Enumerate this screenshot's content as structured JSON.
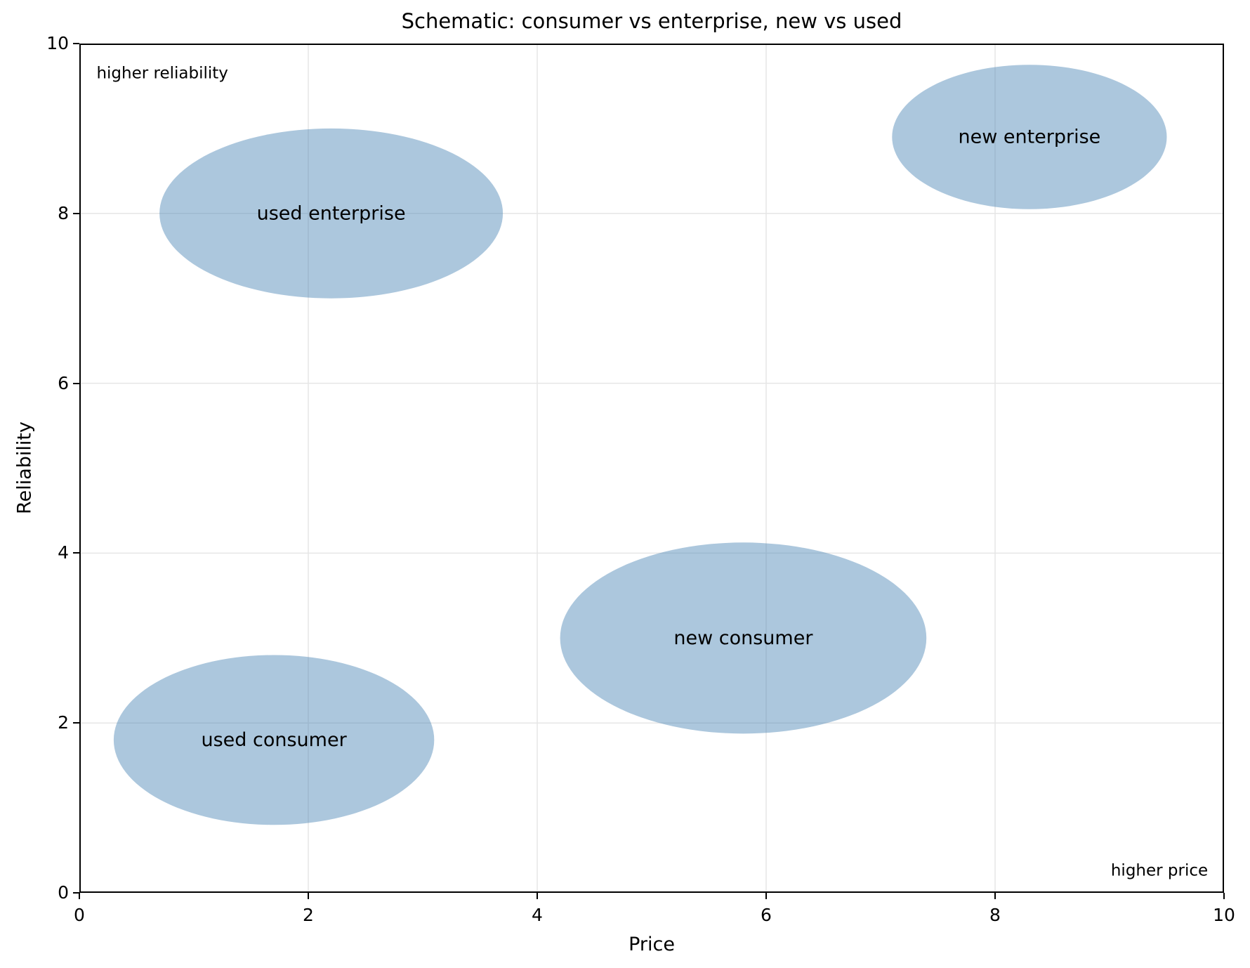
{
  "title": "Schematic: consumer vs enterprise, new vs used",
  "chart_data": {
    "type": "scatter",
    "subtype": "schematic-ellipse-regions",
    "title": "Schematic: consumer vs enterprise, new vs used",
    "xlabel": "Price",
    "ylabel": "Reliability",
    "xlim": [
      0,
      10
    ],
    "ylim": [
      0,
      10
    ],
    "xticks": [
      0,
      2,
      4,
      6,
      8,
      10
    ],
    "yticks": [
      0,
      2,
      4,
      6,
      8,
      10
    ],
    "grid": true,
    "legend": "none",
    "ellipses": [
      {
        "label": "used enterprise",
        "x": 2.2,
        "y": 8.0,
        "width": 3.0,
        "height": 2.0
      },
      {
        "label": "new enterprise",
        "x": 8.3,
        "y": 8.9,
        "width": 2.4,
        "height": 1.7
      },
      {
        "label": "new consumer",
        "x": 5.8,
        "y": 3.0,
        "width": 3.2,
        "height": 2.25
      },
      {
        "label": "used consumer",
        "x": 1.7,
        "y": 1.8,
        "width": 2.8,
        "height": 2.0
      }
    ],
    "annotations": [
      {
        "text": "higher reliability",
        "x": 0.15,
        "y": 9.65,
        "ha": "left"
      },
      {
        "text": "higher price",
        "x": 9.86,
        "y": 0.26,
        "ha": "right"
      }
    ],
    "colors": {
      "ellipse_fill": "#4682b4",
      "ellipse_opacity": 0.45,
      "grid": "#e6e6e6",
      "spine": "#000000",
      "text": "#000000",
      "background": "#ffffff"
    }
  }
}
